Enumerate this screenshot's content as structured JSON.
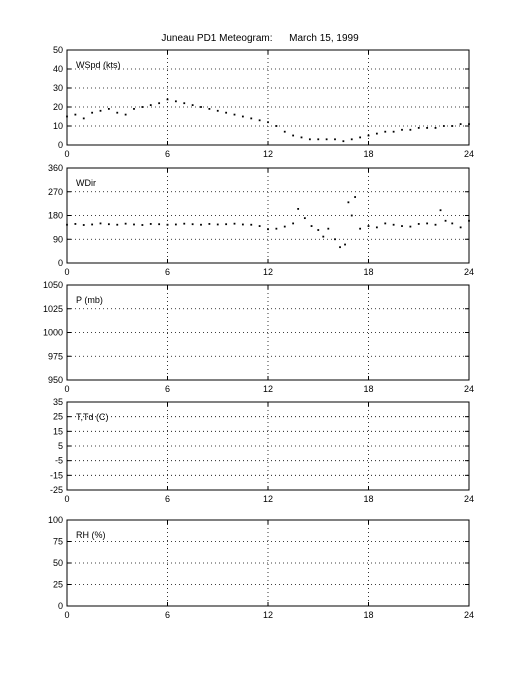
{
  "page": {
    "title": "Juneau PD1 Meteogram:      March 15, 1999"
  },
  "chart_data": [
    {
      "type": "scatter",
      "label": "WSpd (kts)",
      "xlim": [
        0,
        24
      ],
      "xticks": [
        0,
        6,
        12,
        18,
        24
      ],
      "ylim": [
        0,
        50
      ],
      "yticks": [
        0,
        10,
        20,
        30,
        40,
        50
      ],
      "grid": true,
      "x": [
        0,
        0.5,
        1,
        1.5,
        2,
        2.5,
        3,
        3.5,
        4,
        4.5,
        5,
        5.5,
        6,
        6.5,
        7,
        7.5,
        8,
        8.5,
        9,
        9.5,
        10,
        10.5,
        11,
        11.5,
        12,
        12.5,
        13,
        13.5,
        14,
        14.5,
        15,
        15.5,
        16,
        16.5,
        17,
        17.5,
        18,
        18.5,
        19,
        19.5,
        20,
        20.5,
        21,
        21.5,
        22,
        22.5,
        23,
        23.5,
        24
      ],
      "y": [
        15,
        16,
        14,
        17,
        18,
        19,
        17,
        16,
        19,
        20,
        21,
        22,
        24,
        23,
        22,
        21,
        20,
        19,
        18,
        17,
        16,
        15,
        14,
        13,
        12,
        10,
        7,
        5,
        4,
        3,
        3,
        3,
        3,
        2,
        3,
        4,
        5,
        6,
        7,
        7,
        8,
        8,
        9,
        9,
        9,
        10,
        10,
        11,
        11
      ]
    },
    {
      "type": "scatter",
      "label": "WDir",
      "xlim": [
        0,
        24
      ],
      "xticks": [
        0,
        6,
        12,
        18,
        24
      ],
      "ylim": [
        0,
        360
      ],
      "yticks": [
        0,
        90,
        180,
        270,
        360
      ],
      "grid": true,
      "x": [
        0,
        0.5,
        1,
        1.5,
        2,
        2.5,
        3,
        3.5,
        4,
        4.5,
        5,
        5.5,
        6,
        6.5,
        7,
        7.5,
        8,
        8.5,
        9,
        9.5,
        10,
        10.5,
        11,
        11.5,
        12,
        12.5,
        13,
        13.5,
        13.8,
        14.2,
        14.6,
        15,
        15.3,
        15.6,
        16,
        16.3,
        16.6,
        16.8,
        17,
        17.2,
        17.5,
        18,
        18.5,
        19,
        19.5,
        20,
        20.5,
        21,
        21.5,
        22,
        22.3,
        22.6,
        23,
        23.5,
        24
      ],
      "y": [
        145,
        148,
        144,
        146,
        150,
        147,
        145,
        149,
        146,
        144,
        148,
        147,
        145,
        146,
        149,
        147,
        145,
        148,
        146,
        147,
        149,
        146,
        145,
        140,
        128,
        130,
        138,
        150,
        205,
        170,
        140,
        125,
        100,
        130,
        90,
        60,
        70,
        230,
        180,
        250,
        130,
        140,
        135,
        150,
        145,
        140,
        138,
        148,
        150,
        145,
        200,
        160,
        150,
        135,
        160
      ]
    },
    {
      "type": "scatter",
      "label": "P (mb)",
      "xlim": [
        0,
        24
      ],
      "xticks": [
        0,
        6,
        12,
        18,
        24
      ],
      "ylim": [
        950,
        1050
      ],
      "yticks": [
        950,
        975,
        1000,
        1025,
        1050
      ],
      "grid": true,
      "x": [],
      "y": []
    },
    {
      "type": "scatter",
      "label": "T,Td (C)",
      "xlim": [
        0,
        24
      ],
      "xticks": [
        0,
        6,
        12,
        18,
        24
      ],
      "ylim": [
        -25,
        35
      ],
      "yticks": [
        -25,
        -15,
        -5,
        5,
        15,
        25,
        35
      ],
      "grid": true,
      "x": [],
      "y": []
    },
    {
      "type": "scatter",
      "label": "RH (%)",
      "xlim": [
        0,
        24
      ],
      "xticks": [
        0,
        6,
        12,
        18,
        24
      ],
      "ylim": [
        0,
        100
      ],
      "yticks": [
        0,
        25,
        50,
        75,
        100
      ],
      "grid": true,
      "x": [],
      "y": []
    }
  ]
}
